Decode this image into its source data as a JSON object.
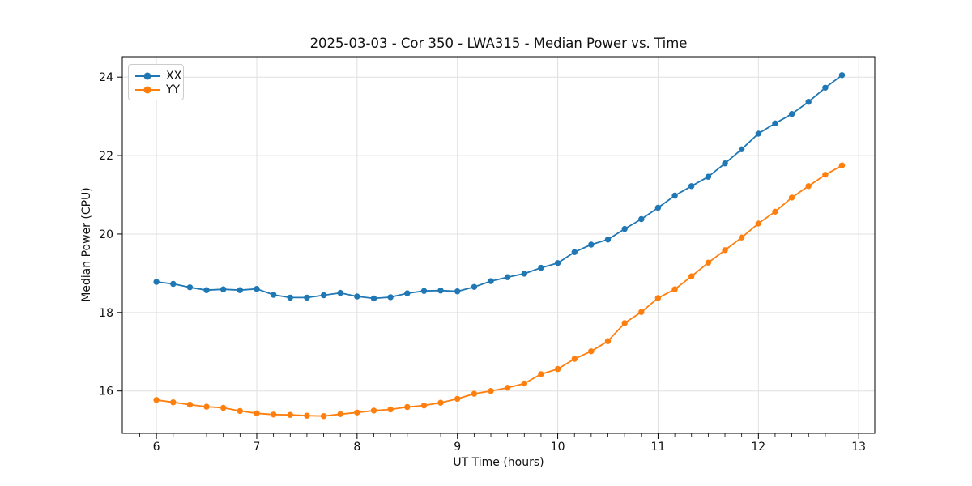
{
  "chart_data": {
    "type": "line",
    "title": "2025-03-03 - Cor 350 - LWA315 - Median Power vs. Time",
    "xlabel": "UT Time (hours)",
    "ylabel": "Median Power (CPU)",
    "xlim": [
      5.66,
      13.16
    ],
    "ylim": [
      14.92,
      24.52
    ],
    "x_ticks": [
      6,
      7,
      8,
      9,
      10,
      11,
      12,
      13
    ],
    "y_ticks": [
      16,
      18,
      20,
      22,
      24
    ],
    "x_minor_tick_step": 0.1667,
    "grid": "major",
    "grid_color": "#e0e0e0",
    "legend_position": "upper left",
    "marker": "circle",
    "x": [
      6.0,
      6.167,
      6.333,
      6.5,
      6.667,
      6.833,
      7.0,
      7.167,
      7.333,
      7.5,
      7.667,
      7.833,
      8.0,
      8.167,
      8.333,
      8.5,
      8.667,
      8.833,
      9.0,
      9.167,
      9.333,
      9.5,
      9.667,
      9.833,
      10.0,
      10.167,
      10.333,
      10.5,
      10.667,
      10.833,
      11.0,
      11.167,
      11.333,
      11.5,
      11.667,
      11.833,
      12.0,
      12.167,
      12.333,
      12.5,
      12.667,
      12.833
    ],
    "series": [
      {
        "name": "XX",
        "color": "#1f77b4",
        "values": [
          18.78,
          18.73,
          18.64,
          18.57,
          18.59,
          18.57,
          18.6,
          18.45,
          18.38,
          18.38,
          18.44,
          18.5,
          18.41,
          18.36,
          18.39,
          18.49,
          18.55,
          18.56,
          18.54,
          18.65,
          18.8,
          18.9,
          18.99,
          19.14,
          19.26,
          19.54,
          19.73,
          19.86,
          20.13,
          20.38,
          20.67,
          20.98,
          21.22,
          21.46,
          21.8,
          22.16,
          22.56,
          22.82,
          23.06,
          23.37,
          23.73,
          24.05
        ]
      },
      {
        "name": "YY",
        "color": "#ff7f0e",
        "values": [
          15.77,
          15.71,
          15.65,
          15.6,
          15.57,
          15.49,
          15.43,
          15.4,
          15.39,
          15.37,
          15.36,
          15.41,
          15.45,
          15.5,
          15.53,
          15.59,
          15.63,
          15.7,
          15.8,
          15.93,
          16.0,
          16.08,
          16.19,
          16.43,
          16.56,
          16.82,
          17.01,
          17.27,
          17.73,
          18.01,
          18.37,
          18.59,
          18.92,
          19.27,
          19.59,
          19.91,
          20.27,
          20.57,
          20.93,
          21.22,
          21.51,
          21.75
        ]
      }
    ]
  }
}
